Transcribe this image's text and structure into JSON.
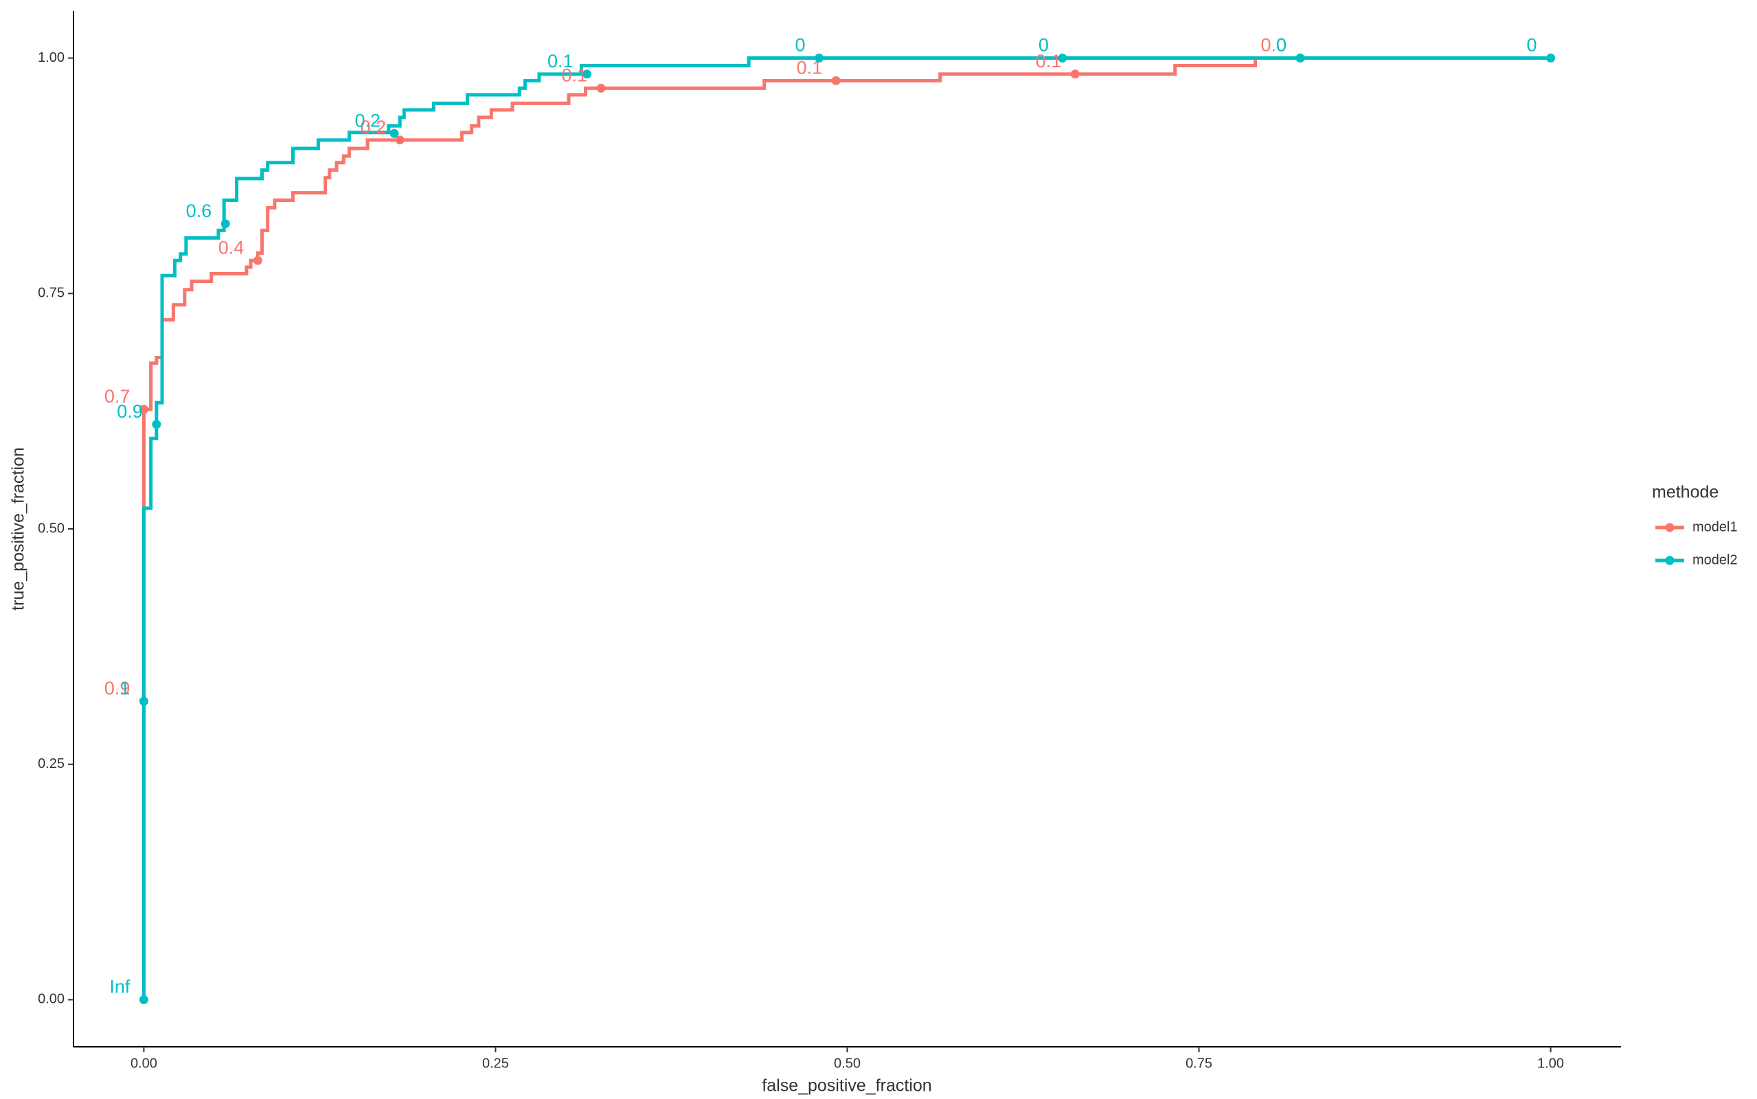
{
  "chart_data": {
    "type": "step-line",
    "x_label": "false_positive_fraction",
    "y_label": "true_positive_fraction",
    "legend_title": "methode",
    "xlim": [
      -0.05,
      1.05
    ],
    "ylim": [
      -0.05,
      1.05
    ],
    "xticks": [
      {
        "value": 0,
        "label": "0.00"
      },
      {
        "value": 0.25,
        "label": "0.25"
      },
      {
        "value": 0.5,
        "label": "0.50"
      },
      {
        "value": 0.75,
        "label": "0.75"
      },
      {
        "value": 1,
        "label": "1.00"
      }
    ],
    "yticks": [
      {
        "value": 0,
        "label": "0.00"
      },
      {
        "value": 0.25,
        "label": "0.25"
      },
      {
        "value": 0.5,
        "label": "0.50"
      },
      {
        "value": 0.75,
        "label": "0.75"
      },
      {
        "value": 1,
        "label": "1.00"
      }
    ],
    "grid": false,
    "series": [
      {
        "name": "model1",
        "color": "#f8766d",
        "x": [
          0,
          0,
          0.005,
          0.005,
          0.009,
          0.009,
          0.013,
          0.013,
          0.021,
          0.021,
          0.029,
          0.029,
          0.034,
          0.034,
          0.048,
          0.048,
          0.073,
          0.073,
          0.076,
          0.076,
          0.081,
          0.081,
          0.084,
          0.084,
          0.088,
          0.088,
          0.093,
          0.093,
          0.106,
          0.106,
          0.129,
          0.129,
          0.132,
          0.132,
          0.137,
          0.137,
          0.142,
          0.142,
          0.146,
          0.146,
          0.159,
          0.159,
          0.226,
          0.226,
          0.233,
          0.233,
          0.238,
          0.238,
          0.247,
          0.247,
          0.262,
          0.262,
          0.302,
          0.302,
          0.314,
          0.314,
          0.441,
          0.441,
          0.566,
          0.566,
          0.733,
          0.733,
          0.79,
          0.79,
          1
        ],
        "values": [
          0,
          0.627,
          0.627,
          0.676,
          0.676,
          0.682,
          0.682,
          0.722,
          0.722,
          0.738,
          0.738,
          0.754,
          0.754,
          0.763,
          0.763,
          0.771,
          0.771,
          0.778,
          0.778,
          0.785,
          0.785,
          0.793,
          0.793,
          0.817,
          0.817,
          0.841,
          0.841,
          0.849,
          0.849,
          0.857,
          0.857,
          0.873,
          0.873,
          0.881,
          0.881,
          0.889,
          0.889,
          0.896,
          0.896,
          0.904,
          0.904,
          0.913,
          0.913,
          0.921,
          0.921,
          0.928,
          0.928,
          0.937,
          0.937,
          0.945,
          0.945,
          0.952,
          0.952,
          0.961,
          0.961,
          0.968,
          0.968,
          0.976,
          0.976,
          0.983,
          0.983,
          0.992,
          0.992,
          1,
          1
        ],
        "points": {
          "x": [
            0,
            0,
            0.081,
            0.182,
            0.325,
            0.492,
            0.662,
            0.822
          ],
          "values": [
            0.317,
            0.627,
            0.785,
            0.913,
            0.968,
            0.976,
            0.983,
            1
          ],
          "labels": [
            "0.9",
            "0.7",
            "0.4",
            "0.2",
            "0.1",
            "0.1",
            "0.1",
            "0.0"
          ]
        }
      },
      {
        "name": "model2",
        "color": "#00bfc4",
        "x": [
          0,
          0,
          0.005,
          0.005,
          0.009,
          0.009,
          0.013,
          0.013,
          0.022,
          0.022,
          0.026,
          0.026,
          0.03,
          0.03,
          0.053,
          0.053,
          0.057,
          0.057,
          0.066,
          0.066,
          0.084,
          0.084,
          0.088,
          0.088,
          0.106,
          0.106,
          0.124,
          0.124,
          0.146,
          0.146,
          0.174,
          0.174,
          0.182,
          0.182,
          0.185,
          0.185,
          0.206,
          0.206,
          0.23,
          0.23,
          0.267,
          0.267,
          0.271,
          0.271,
          0.281,
          0.281,
          0.311,
          0.311,
          0.43,
          0.43,
          1
        ],
        "values": [
          0,
          0.522,
          0.522,
          0.596,
          0.596,
          0.634,
          0.634,
          0.769,
          0.769,
          0.785,
          0.785,
          0.792,
          0.792,
          0.809,
          0.809,
          0.817,
          0.817,
          0.849,
          0.849,
          0.872,
          0.872,
          0.881,
          0.881,
          0.889,
          0.889,
          0.904,
          0.904,
          0.913,
          0.913,
          0.921,
          0.921,
          0.928,
          0.928,
          0.937,
          0.937,
          0.945,
          0.945,
          0.952,
          0.952,
          0.961,
          0.961,
          0.968,
          0.968,
          0.976,
          0.976,
          0.983,
          0.983,
          0.992,
          0.992,
          1,
          1
        ],
        "points": {
          "x": [
            0,
            0,
            0.009,
            0.058,
            0.178,
            0.315,
            0.48,
            0.653,
            0.822,
            1
          ],
          "values": [
            0,
            0.317,
            0.611,
            0.824,
            0.92,
            0.983,
            1,
            1,
            1,
            1
          ],
          "labels": [
            "Inf",
            "1",
            "0.9",
            "0.6",
            "0.2",
            "0.1",
            "0",
            "0",
            "0",
            "0"
          ]
        }
      }
    ]
  }
}
